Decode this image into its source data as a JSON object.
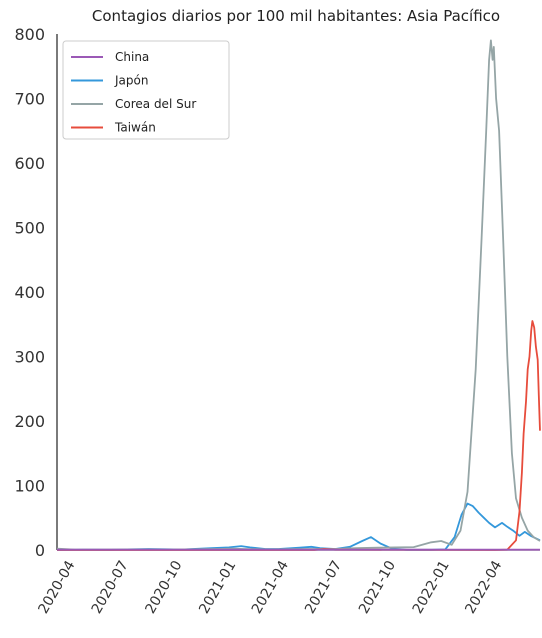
{
  "chart_data": {
    "type": "line",
    "title": "Contagios diarios por 100 mil habitantes: Asia Pacífico",
    "xlabel": "",
    "ylabel": "",
    "x_range": [
      "2020-03-01",
      "2022-06-05"
    ],
    "ylim": [
      0,
      800
    ],
    "y_ticks": [
      0,
      100,
      200,
      300,
      400,
      500,
      600,
      700,
      800
    ],
    "x_ticks": [
      "2020-04",
      "2020-07",
      "2020-10",
      "2021-01",
      "2021-04",
      "2021-07",
      "2021-10",
      "2022-01",
      "2022-04"
    ],
    "grid": false,
    "legend_position": "top-left",
    "series": [
      {
        "name": "China",
        "color": "#9b59b6",
        "points": [
          [
            "2020-03-01",
            0.5
          ],
          [
            "2022-06-05",
            0.5
          ]
        ]
      },
      {
        "name": "Japón",
        "color": "#3498db",
        "points": [
          [
            "2020-03-01",
            0
          ],
          [
            "2020-04-15",
            0.5
          ],
          [
            "2020-06-01",
            0.3
          ],
          [
            "2020-08-05",
            1.5
          ],
          [
            "2020-10-01",
            0.8
          ],
          [
            "2020-11-20",
            3
          ],
          [
            "2020-12-20",
            4
          ],
          [
            "2021-01-10",
            6
          ],
          [
            "2021-01-25",
            4
          ],
          [
            "2021-02-20",
            1.5
          ],
          [
            "2021-03-15",
            1.5
          ],
          [
            "2021-04-20",
            3.5
          ],
          [
            "2021-05-10",
            5
          ],
          [
            "2021-05-25",
            3
          ],
          [
            "2021-06-20",
            1.5
          ],
          [
            "2021-07-15",
            5
          ],
          [
            "2021-08-05",
            14
          ],
          [
            "2021-08-20",
            20
          ],
          [
            "2021-09-05",
            10
          ],
          [
            "2021-09-25",
            2
          ],
          [
            "2021-10-20",
            0.3
          ],
          [
            "2021-12-01",
            0.3
          ],
          [
            "2021-12-25",
            1
          ],
          [
            "2022-01-10",
            20
          ],
          [
            "2022-01-22",
            55
          ],
          [
            "2022-02-01",
            72
          ],
          [
            "2022-02-10",
            68
          ],
          [
            "2022-02-20",
            58
          ],
          [
            "2022-03-01",
            50
          ],
          [
            "2022-03-10",
            42
          ],
          [
            "2022-03-20",
            35
          ],
          [
            "2022-04-01",
            42
          ],
          [
            "2022-04-10",
            36
          ],
          [
            "2022-04-20",
            30
          ],
          [
            "2022-05-01",
            22
          ],
          [
            "2022-05-10",
            28
          ],
          [
            "2022-05-20",
            22
          ],
          [
            "2022-06-05",
            15
          ]
        ]
      },
      {
        "name": "Corea del Sur",
        "color": "#95a5a6",
        "points": [
          [
            "2020-03-01",
            2
          ],
          [
            "2020-04-01",
            0.5
          ],
          [
            "2020-08-15",
            0.8
          ],
          [
            "2020-09-01",
            0.5
          ],
          [
            "2020-12-01",
            1.5
          ],
          [
            "2020-12-25",
            2
          ],
          [
            "2021-01-15",
            1.5
          ],
          [
            "2021-03-01",
            1
          ],
          [
            "2021-05-01",
            1.5
          ],
          [
            "2021-06-20",
            1.5
          ],
          [
            "2021-07-25",
            3
          ],
          [
            "2021-09-01",
            3.5
          ],
          [
            "2021-10-01",
            4
          ],
          [
            "2021-11-01",
            4.5
          ],
          [
            "2021-12-01",
            12
          ],
          [
            "2021-12-18",
            14
          ],
          [
            "2022-01-05",
            8
          ],
          [
            "2022-01-20",
            30
          ],
          [
            "2022-02-01",
            90
          ],
          [
            "2022-02-15",
            280
          ],
          [
            "2022-02-25",
            480
          ],
          [
            "2022-03-05",
            650
          ],
          [
            "2022-03-10",
            760
          ],
          [
            "2022-03-13",
            790
          ],
          [
            "2022-03-16",
            760
          ],
          [
            "2022-03-18",
            780
          ],
          [
            "2022-03-22",
            700
          ],
          [
            "2022-03-27",
            650
          ],
          [
            "2022-04-03",
            480
          ],
          [
            "2022-04-10",
            300
          ],
          [
            "2022-04-18",
            150
          ],
          [
            "2022-04-25",
            80
          ],
          [
            "2022-05-05",
            50
          ],
          [
            "2022-05-15",
            30
          ],
          [
            "2022-05-25",
            20
          ],
          [
            "2022-06-05",
            14
          ]
        ]
      },
      {
        "name": "Taiwán",
        "color": "#e74c3c",
        "points": [
          [
            "2020-03-01",
            0
          ],
          [
            "2021-05-15",
            0
          ],
          [
            "2021-06-01",
            1.5
          ],
          [
            "2021-06-20",
            0.5
          ],
          [
            "2022-03-20",
            0
          ],
          [
            "2022-04-10",
            0.5
          ],
          [
            "2022-04-25",
            15
          ],
          [
            "2022-05-01",
            60
          ],
          [
            "2022-05-05",
            120
          ],
          [
            "2022-05-08",
            180
          ],
          [
            "2022-05-12",
            230
          ],
          [
            "2022-05-15",
            280
          ],
          [
            "2022-05-18",
            300
          ],
          [
            "2022-05-21",
            340
          ],
          [
            "2022-05-23",
            355
          ],
          [
            "2022-05-26",
            345
          ],
          [
            "2022-05-29",
            315
          ],
          [
            "2022-06-01",
            295
          ],
          [
            "2022-06-03",
            240
          ],
          [
            "2022-06-05",
            185
          ]
        ]
      }
    ]
  }
}
